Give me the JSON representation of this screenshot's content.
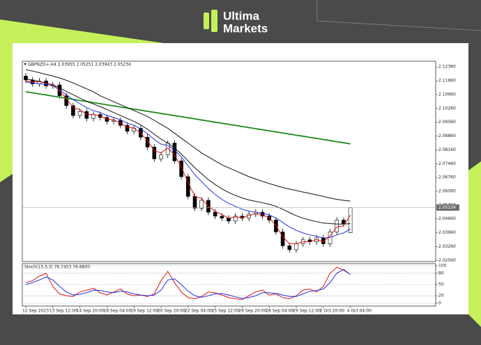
{
  "brand": {
    "line1": "Ultima",
    "line2": "Markets"
  },
  "chart_data": [
    {
      "type": "candlestick",
      "title": "GBPNZD+,H4 2.03955 2.05251 2.03943 2.05234",
      "categories": [
        "12 Sep 2023",
        null,
        null,
        null,
        "13 Sep 12:00",
        null,
        null,
        null,
        "14 Sep 20:00",
        null,
        null,
        null,
        "18 Sep 04:00",
        null,
        null,
        null,
        "19 Sep 12:00",
        null,
        null,
        null,
        "20 Sep 20:00",
        null,
        null,
        null,
        "22 Sep 04:00",
        null,
        null,
        null,
        "25 Sep 12:00",
        null,
        null,
        null,
        "26 Sep 20:00",
        null,
        null,
        null,
        "28 Sep 04:00",
        null,
        null,
        null,
        "29 Sep 12:00",
        null,
        null,
        null,
        "2 Oct 20:00",
        null,
        null,
        null,
        "4 Oct 04:00"
      ],
      "open": [
        2.119,
        2.117,
        2.115,
        2.1165,
        2.114,
        2.1145,
        2.109,
        2.104,
        2.099,
        2.101,
        2.0975,
        2.0995,
        2.098,
        2.096,
        2.0965,
        2.094,
        2.091,
        2.0925,
        2.088,
        2.083,
        2.077,
        2.079,
        2.085,
        2.076,
        2.068,
        2.058,
        2.052,
        2.056,
        2.05,
        2.048,
        2.047,
        2.0455,
        2.048,
        2.047,
        2.049,
        2.05,
        2.048,
        2.046,
        2.04,
        2.033,
        2.031,
        2.034,
        2.036,
        2.035,
        2.037,
        2.034,
        2.04,
        2.046,
        2.03955
      ],
      "high": [
        2.1205,
        2.1185,
        2.118,
        2.118,
        2.116,
        2.116,
        2.1105,
        2.1055,
        2.1025,
        2.1025,
        2.101,
        2.101,
        2.0995,
        2.098,
        2.098,
        2.0955,
        2.094,
        2.094,
        2.0895,
        2.0845,
        2.0805,
        2.0865,
        2.0865,
        2.0775,
        2.0695,
        2.0595,
        2.0575,
        2.0575,
        2.0515,
        2.0495,
        2.0485,
        2.0495,
        2.0495,
        2.0505,
        2.0515,
        2.0515,
        2.0495,
        2.0475,
        2.0415,
        2.0345,
        2.0355,
        2.0375,
        2.0375,
        2.0385,
        2.0385,
        2.0415,
        2.0475,
        2.0475,
        2.05251
      ],
      "low": [
        2.1155,
        2.1135,
        2.1135,
        2.1125,
        2.1125,
        2.1075,
        2.1025,
        2.0975,
        2.0975,
        2.096,
        2.096,
        2.0965,
        2.0945,
        2.0945,
        2.0925,
        2.0895,
        2.0895,
        2.0865,
        2.0815,
        2.0755,
        2.0755,
        2.0775,
        2.0745,
        2.0665,
        2.0565,
        2.0505,
        2.0505,
        2.0485,
        2.0465,
        2.0455,
        2.044,
        2.044,
        2.0455,
        2.0455,
        2.0475,
        2.0465,
        2.0445,
        2.0385,
        2.0315,
        2.0295,
        2.0295,
        2.0325,
        2.0335,
        2.0335,
        2.0325,
        2.0325,
        2.0385,
        2.0425,
        2.03943
      ],
      "close": [
        2.117,
        2.115,
        2.1165,
        2.114,
        2.1145,
        2.109,
        2.104,
        2.099,
        2.101,
        2.0975,
        2.0995,
        2.098,
        2.096,
        2.0965,
        2.094,
        2.091,
        2.0925,
        2.088,
        2.083,
        2.077,
        2.079,
        2.085,
        2.076,
        2.068,
        2.058,
        2.052,
        2.056,
        2.05,
        2.048,
        2.047,
        2.0455,
        2.048,
        2.047,
        2.049,
        2.05,
        2.048,
        2.046,
        2.04,
        2.033,
        2.031,
        2.034,
        2.036,
        2.035,
        2.037,
        2.034,
        2.04,
        2.046,
        2.044,
        2.05234
      ],
      "series": [
        {
          "color": "#1a8a1a",
          "values": [
            2.111,
            2.1105,
            2.1099,
            2.1094,
            2.1088,
            2.1083,
            2.1077,
            2.1072,
            2.1066,
            2.1061,
            2.1055,
            2.105,
            2.1044,
            2.1039,
            2.1033,
            2.1028,
            2.1022,
            2.1017,
            2.1011,
            2.1006,
            2.1,
            2.0995,
            2.0989,
            2.0984,
            2.0978,
            2.0973,
            2.0967,
            2.0962,
            2.0956,
            2.0951,
            2.0945,
            2.094,
            2.0934,
            2.0929,
            2.0923,
            2.0918,
            2.0912,
            2.0907,
            2.0901,
            2.0896,
            2.089,
            2.0885,
            2.0879,
            2.0874,
            2.0868,
            2.0863,
            2.0857,
            2.0852,
            2.0846
          ]
        },
        {
          "color": "#111111",
          "values": [
            2.1222,
            2.1215,
            2.1207,
            2.1198,
            2.119,
            2.118,
            2.1168,
            2.1155,
            2.114,
            2.1125,
            2.111,
            2.109,
            2.1075,
            2.106,
            2.1045,
            2.103,
            2.1015,
            2.1,
            2.0985,
            2.0965,
            2.0945,
            2.0925,
            2.09,
            2.0875,
            2.085,
            2.0825,
            2.08,
            2.078,
            2.076,
            2.074,
            2.0725,
            2.071,
            2.0695,
            2.068,
            2.0668,
            2.0656,
            2.0645,
            2.0635,
            2.0625,
            2.0617,
            2.061,
            2.0602,
            2.0595,
            2.0588,
            2.058,
            2.0572,
            2.0565,
            2.056,
            2.0556
          ]
        },
        {
          "color": "#111111",
          "values": [
            2.1175,
            2.117,
            2.1162,
            2.1155,
            2.1145,
            2.113,
            2.1112,
            2.1095,
            2.1078,
            2.1062,
            2.1048,
            2.1035,
            2.102,
            2.1005,
            2.099,
            2.0975,
            2.096,
            2.0942,
            2.092,
            2.0895,
            2.087,
            2.085,
            2.0825,
            2.0795,
            2.076,
            2.0725,
            2.0695,
            2.0665,
            2.064,
            2.0618,
            2.06,
            2.0585,
            2.0572,
            2.0562,
            2.0555,
            2.0548,
            2.054,
            2.053,
            2.0515,
            2.0498,
            2.0482,
            2.047,
            2.046,
            2.0452,
            2.0445,
            2.0442,
            2.044,
            2.044,
            2.0442
          ]
        },
        {
          "color": "#2030e0",
          "values": [
            2.116,
            2.1155,
            2.115,
            2.1148,
            2.114,
            2.112,
            2.1095,
            2.107,
            2.105,
            2.103,
            2.1015,
            2.1005,
            2.099,
            2.098,
            2.0968,
            2.0952,
            2.094,
            2.0922,
            2.0898,
            2.0868,
            2.0845,
            2.0838,
            2.0815,
            2.078,
            2.0735,
            2.069,
            2.0655,
            2.062,
            2.059,
            2.0565,
            2.0545,
            2.053,
            2.0515,
            2.0505,
            2.05,
            2.0494,
            2.0486,
            2.047,
            2.0448,
            2.0425,
            2.0408,
            2.0395,
            2.0385,
            2.0378,
            2.037,
            2.0372,
            2.0385,
            2.0395,
            2.0415
          ]
        },
        {
          "color": "#e01010",
          "values": [
            2.1165,
            2.116,
            2.1162,
            2.1152,
            2.1148,
            2.1115,
            2.1075,
            2.103,
            2.102,
            2.0995,
            2.0995,
            2.0987,
            2.0972,
            2.0968,
            2.0952,
            2.093,
            2.0927,
            2.09,
            2.0862,
            2.0812,
            2.08,
            2.0826,
            2.079,
            2.073,
            2.065,
            2.058,
            2.057,
            2.053,
            2.0505,
            2.0488,
            2.047,
            2.0476,
            2.0473,
            2.0483,
            2.0493,
            2.0486,
            2.0472,
            2.0432,
            2.0375,
            2.034,
            2.034,
            2.035,
            2.035,
            2.0362,
            2.035,
            2.038,
            2.0425,
            2.0432,
            2.0485
          ]
        }
      ],
      "ylim": [
        2.025,
        2.1265
      ],
      "yticks": [
        {
          "value": 2.1236,
          "label": "2.12360"
        },
        {
          "value": 2.1166,
          "label": "2.11660"
        },
        {
          "value": 2.1096,
          "label": "2.10960"
        },
        {
          "value": 2.1026,
          "label": "2.10260"
        },
        {
          "value": 2.0956,
          "label": "2.09560"
        },
        {
          "value": 2.0886,
          "label": "2.08860"
        },
        {
          "value": 2.0816,
          "label": "2.08160"
        },
        {
          "value": 2.0746,
          "label": "2.07460"
        },
        {
          "value": 2.0676,
          "label": "2.06760"
        },
        {
          "value": 2.0606,
          "label": "2.06060"
        },
        {
          "value": 2.0536,
          "label": "2.05360"
        },
        {
          "value": 2.0466,
          "label": "2.04660"
        },
        {
          "value": 2.0396,
          "label": "2.03960"
        },
        {
          "value": 2.0326,
          "label": "2.03260"
        },
        {
          "value": 2.0256,
          "label": "2.02560"
        }
      ],
      "current_price": {
        "value": 2.05234,
        "label": "2.05234"
      },
      "bull_color": "#ffffff",
      "bear_color": "#000000"
    },
    {
      "type": "line",
      "title": "Stoch(13,3,3) 76.7453 76.6800",
      "series": [
        {
          "color": "#e01010",
          "values": [
            55,
            60,
            72,
            80,
            45,
            25,
            20,
            18,
            30,
            35,
            40,
            28,
            22,
            30,
            38,
            25,
            20,
            22,
            18,
            25,
            60,
            85,
            55,
            30,
            15,
            12,
            18,
            30,
            28,
            22,
            15,
            12,
            10,
            20,
            30,
            35,
            22,
            25,
            15,
            12,
            20,
            35,
            38,
            30,
            45,
            80,
            96,
            88,
            76.7453
          ]
        },
        {
          "color": "#2030e0",
          "values": [
            50,
            55,
            62,
            70,
            62,
            45,
            30,
            22,
            24,
            28,
            35,
            34,
            30,
            28,
            32,
            30,
            25,
            22,
            20,
            22,
            35,
            62,
            65,
            50,
            32,
            20,
            16,
            20,
            25,
            26,
            22,
            17,
            13,
            15,
            20,
            28,
            28,
            26,
            22,
            18,
            18,
            25,
            32,
            34,
            38,
            55,
            80,
            90,
            76.68
          ]
        }
      ],
      "ylim": [
        0,
        100
      ],
      "yticks": [
        0,
        20,
        50,
        80,
        100
      ]
    }
  ]
}
